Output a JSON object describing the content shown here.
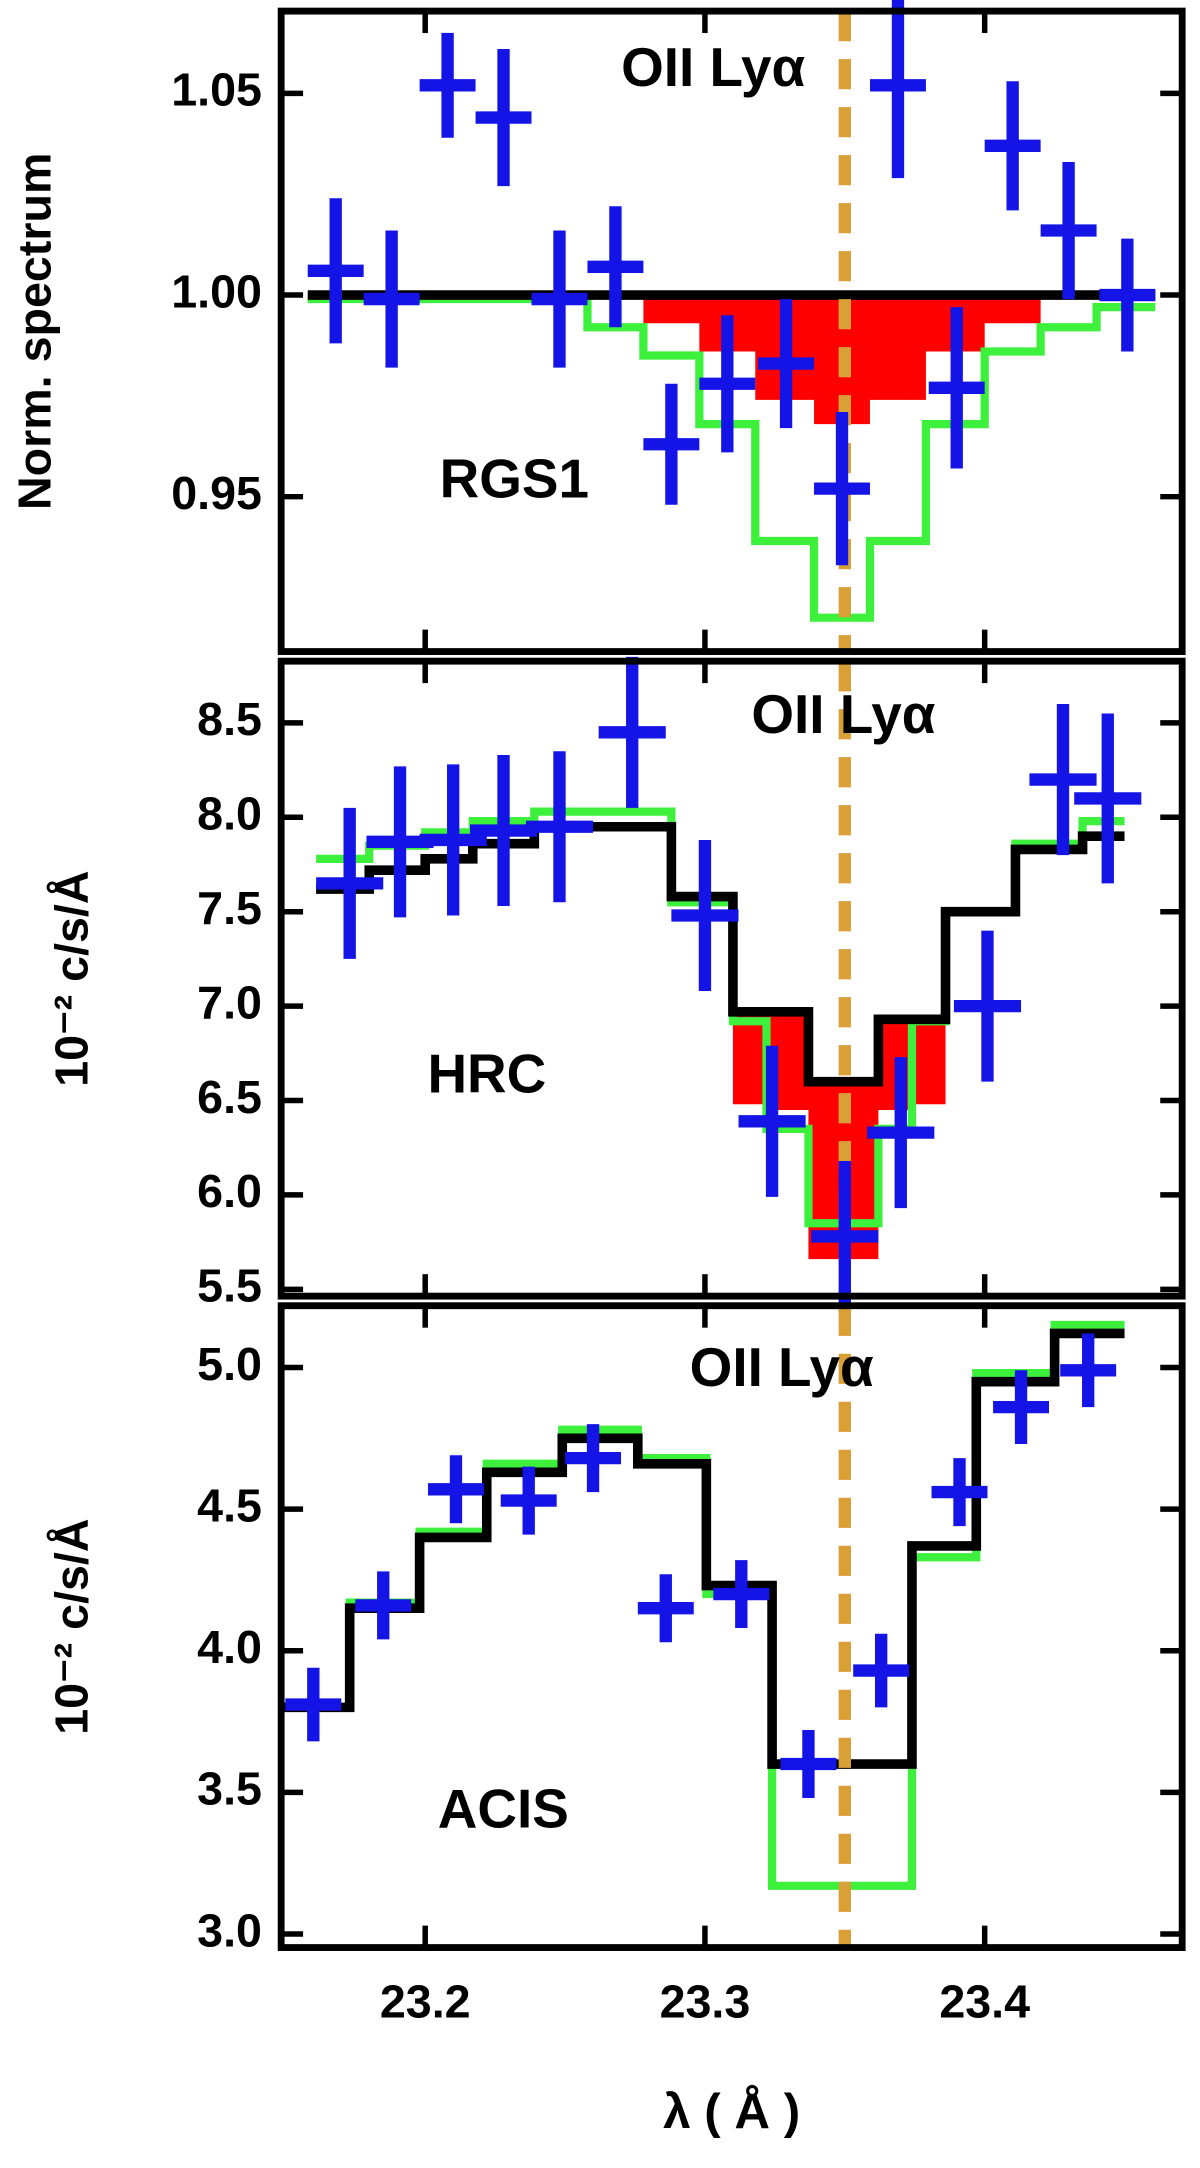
{
  "chart_data": [
    {
      "type": "errorbar-step",
      "annotation": "OII Lyα",
      "label": "RGS1",
      "ylabel": "Norm. spectrum",
      "xlim": [
        23.1485,
        23.4706
      ],
      "ylim": [
        0.9116,
        1.0704
      ],
      "xticks": [
        23.2,
        23.3,
        23.4
      ],
      "yticks": [
        0.95,
        {
          "value": 1,
          "label": "1.00"
        },
        1.05
      ],
      "vline": {
        "x": 23.35,
        "color": "#d9a037"
      },
      "points": {
        "color": "#1414e6",
        "xerr": 0.01,
        "x": [
          23.168,
          23.188,
          23.208,
          23.228,
          23.248,
          23.268,
          23.288,
          23.308,
          23.329,
          23.349,
          23.369,
          23.39,
          23.41,
          23.43,
          23.451
        ],
        "values": [
          1.006,
          0.999,
          1.052,
          1.044,
          0.999,
          1.007,
          0.963,
          0.978,
          0.983,
          0.952,
          1.052,
          0.977,
          1.037,
          1.016,
          1.0
        ],
        "yerr": [
          0.018,
          0.017,
          0.013,
          0.017,
          0.017,
          0.015,
          0.015,
          0.017,
          0.016,
          0.019,
          0.023,
          0.02,
          0.016,
          0.017,
          0.014
        ]
      },
      "fill": {
        "color": "#ff0000",
        "edges": [
          23.278,
          23.298,
          23.318,
          23.339,
          23.359,
          23.379,
          23.4,
          23.42
        ],
        "values": [
          0.993,
          0.986,
          0.974,
          0.968,
          0.974,
          0.986,
          0.993
        ]
      },
      "steps": [
        {
          "color": "#3cf03c",
          "edges": [
            23.158,
            23.178,
            23.198,
            23.218,
            23.238,
            23.258,
            23.278,
            23.298,
            23.318,
            23.339,
            23.359,
            23.379,
            23.4,
            23.42,
            23.44,
            23.461
          ],
          "values": [
            0.999,
            0.999,
            0.999,
            0.999,
            0.999,
            0.992,
            0.985,
            0.968,
            0.939,
            0.92,
            0.939,
            0.968,
            0.986,
            0.992,
            0.997
          ]
        },
        {
          "color": "#000000",
          "edges": [
            23.158,
            23.178,
            23.198,
            23.218,
            23.238,
            23.258,
            23.278,
            23.298,
            23.318,
            23.339,
            23.359,
            23.379,
            23.4,
            23.42,
            23.44,
            23.461
          ],
          "values": [
            1.0,
            1.0,
            1.0,
            1.0,
            1.0,
            1.0,
            1.0,
            1.0,
            1.0,
            1.0,
            1.0,
            1.0,
            1.0,
            1.0,
            1.0
          ]
        }
      ]
    },
    {
      "type": "errorbar-step",
      "annotation": "OII Lyα",
      "label": "HRC",
      "ylabel": "10⁻² c/s/Å",
      "xlim": [
        23.1485,
        23.4706
      ],
      "ylim": [
        5.464,
        8.827
      ],
      "xticks": [
        23.2,
        23.3,
        23.4
      ],
      "yticks": [
        5.5,
        {
          "value": 6,
          "label": "6.0"
        },
        6.5,
        {
          "value": 7,
          "label": "7.0"
        },
        7.5,
        {
          "value": 8,
          "label": "8.0"
        },
        8.5
      ],
      "vline": {
        "x": 23.35,
        "color": "#d9a037"
      },
      "points": {
        "color": "#1414e6",
        "xerr": 0.012,
        "x": [
          23.173,
          23.191,
          23.21,
          23.228,
          23.248,
          23.274,
          23.3,
          23.324,
          23.35,
          23.37,
          23.401,
          23.428,
          23.444
        ],
        "values": [
          7.65,
          7.87,
          7.88,
          7.93,
          7.95,
          8.45,
          7.48,
          6.39,
          5.78,
          6.33,
          7.0,
          8.2,
          8.1
        ],
        "yerr": [
          0.4,
          0.4,
          0.4,
          0.4,
          0.4,
          0.4,
          0.4,
          0.4,
          0.4,
          0.4,
          0.4,
          0.4,
          0.45
        ]
      },
      "fill": {
        "color": "#ff0000",
        "edges": [
          23.31,
          23.322,
          23.337,
          23.362,
          23.374,
          23.386
        ],
        "values": [
          6.48,
          6.45,
          5.66,
          6.45,
          6.48
        ]
      },
      "steps": [
        {
          "color": "#3cf03c",
          "edges": [
            23.161,
            23.18,
            23.2,
            23.217,
            23.239,
            23.288,
            23.31,
            23.322,
            23.337,
            23.362,
            23.374,
            23.386,
            23.411,
            23.435,
            23.45
          ],
          "values": [
            7.78,
            7.85,
            7.92,
            7.98,
            8.03,
            7.55,
            6.92,
            6.35,
            5.85,
            6.35,
            6.92,
            7.5,
            7.86,
            7.98
          ]
        },
        {
          "color": "#000000",
          "edges": [
            23.161,
            23.18,
            23.2,
            23.217,
            23.239,
            23.288,
            23.31,
            23.337,
            23.362,
            23.386,
            23.411,
            23.435,
            23.45
          ],
          "values": [
            7.62,
            7.72,
            7.78,
            7.86,
            7.95,
            7.58,
            6.97,
            6.6,
            6.93,
            7.5,
            7.83,
            7.9
          ]
        }
      ]
    },
    {
      "type": "errorbar-step",
      "annotation": "OII Lyα",
      "label": "ACIS",
      "ylabel": "10⁻² c/s/Å",
      "xlabel": "λ ( Å )",
      "xlim": [
        23.1485,
        23.4706
      ],
      "ylim": [
        2.952,
        5.218
      ],
      "xticks": [
        23.2,
        23.3,
        23.4
      ],
      "yticks": [
        {
          "value": 3,
          "label": "3.0"
        },
        3.5,
        {
          "value": 4,
          "label": "4.0"
        },
        4.5,
        {
          "value": 5,
          "label": "5.0"
        }
      ],
      "vline": {
        "x": 23.35,
        "color": "#d9a037"
      },
      "points": {
        "color": "#1414e6",
        "xerr": 0.01,
        "x": [
          23.16,
          23.185,
          23.211,
          23.237,
          23.26,
          23.286,
          23.313,
          23.337,
          23.363,
          23.391,
          23.413,
          23.437
        ],
        "values": [
          3.81,
          4.16,
          4.57,
          4.53,
          4.68,
          4.15,
          4.2,
          3.6,
          3.93,
          4.56,
          4.86,
          4.99
        ],
        "yerr": [
          0.13,
          0.12,
          0.12,
          0.12,
          0.12,
          0.12,
          0.12,
          0.12,
          0.13,
          0.12,
          0.13,
          0.13
        ]
      },
      "steps": [
        {
          "color": "#3cf03c",
          "edges": [
            23.1485,
            23.173,
            23.198,
            23.222,
            23.249,
            23.276,
            23.3005,
            23.324,
            23.374,
            23.397,
            23.425,
            23.45
          ],
          "values": [
            3.8,
            4.17,
            4.42,
            4.66,
            4.78,
            4.68,
            4.2,
            3.17,
            4.33,
            4.98,
            5.15
          ]
        },
        {
          "color": "#000000",
          "edges": [
            23.1485,
            23.173,
            23.198,
            23.222,
            23.249,
            23.276,
            23.3005,
            23.324,
            23.374,
            23.397,
            23.425,
            23.45
          ],
          "values": [
            3.8,
            4.15,
            4.4,
            4.63,
            4.75,
            4.66,
            4.23,
            3.6,
            4.37,
            4.95,
            5.12
          ]
        }
      ]
    }
  ]
}
